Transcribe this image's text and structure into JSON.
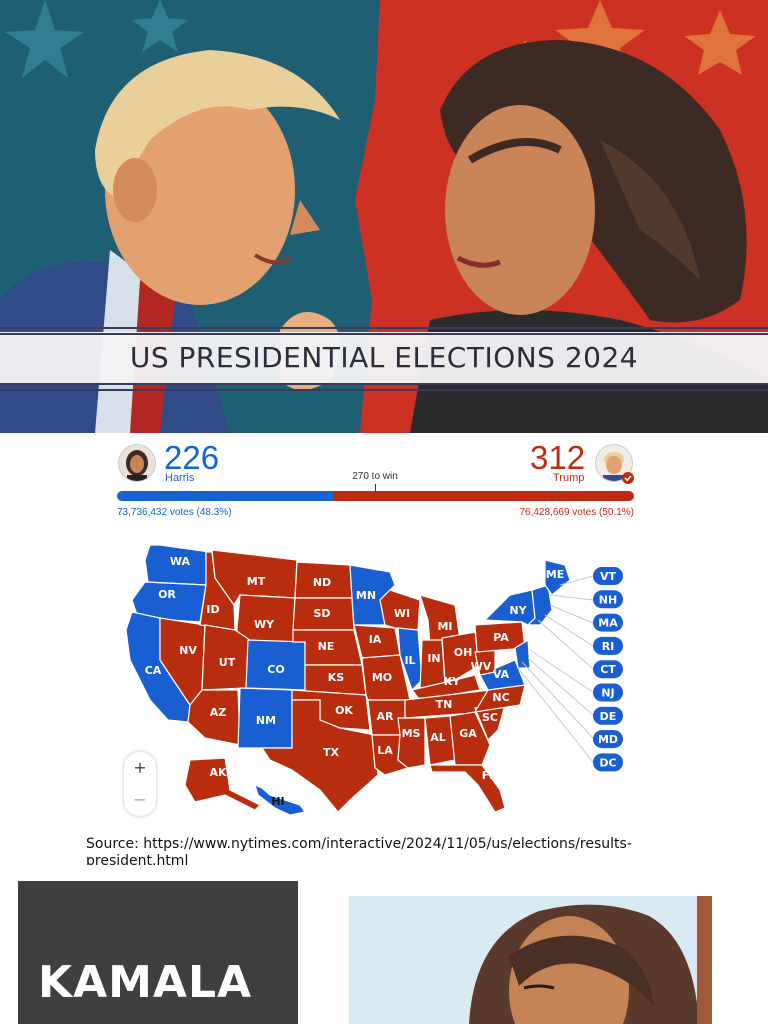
{
  "banner": {
    "title": "US PRESIDENTIAL ELECTIONS 2024"
  },
  "results": {
    "harris": {
      "electoral_votes": "226",
      "name": "Harris",
      "popular_votes": "73,736,432 votes (48.3%)",
      "color": "#1565d0"
    },
    "trump": {
      "electoral_votes": "312",
      "name": "Trump",
      "popular_votes": "76,428,669 votes (50.1%)",
      "color": "#c12a12"
    },
    "threshold_label": "270 to win",
    "electoral_share": {
      "harris": 226,
      "trump": 312,
      "total": 538
    }
  },
  "map": {
    "democrat_color": "#1a5fd1",
    "republican_color": "#b82d0e",
    "state_labels": {
      "WA": "WA",
      "OR": "OR",
      "CA": "CA",
      "NV": "NV",
      "ID": "ID",
      "MT": "MT",
      "WY": "WY",
      "UT": "UT",
      "AZ": "AZ",
      "CO": "CO",
      "NM": "NM",
      "ND": "ND",
      "SD": "SD",
      "NE": "NE",
      "KS": "KS",
      "OK": "OK",
      "TX": "TX",
      "MN": "MN",
      "IA": "IA",
      "MO": "MO",
      "AR": "AR",
      "LA": "LA",
      "WI": "WI",
      "IL": "IL",
      "MI": "MI",
      "IN": "IN",
      "OH": "OH",
      "KY": "KY",
      "TN": "TN",
      "MS": "MS",
      "AL": "AL",
      "GA": "GA",
      "FL": "FL",
      "SC": "SC",
      "NC": "NC",
      "VA": "VA",
      "WV": "WV",
      "PA": "PA",
      "NY": "NY",
      "ME": "ME",
      "AK": "AK",
      "HI": "HI"
    },
    "small_states": [
      "VT",
      "NH",
      "MA",
      "RI",
      "CT",
      "NJ",
      "DE",
      "MD",
      "DC"
    ],
    "zoom_in": "+",
    "zoom_out": "−"
  },
  "source_text": "Source: https://www.nytimes.com/interactive/2024/11/05/us/elections/results-president.html",
  "kamala_panel": {
    "text": "KAMALA"
  }
}
